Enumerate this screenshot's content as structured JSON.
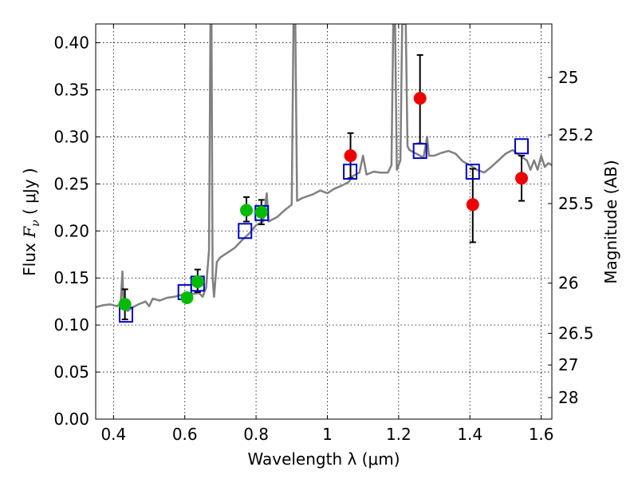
{
  "chart_data": {
    "type": "scatter",
    "title": "",
    "xlabel": "Wavelength  λ (μm)",
    "ylabel": "Flux  F_ν  ( μJy )",
    "y2label": "Magnitude (AB)",
    "xlim": [
      0.35,
      1.63
    ],
    "ylim": [
      0.0,
      0.42
    ],
    "grid": true,
    "xticks": [
      {
        "value": 0.4,
        "label": "0.4"
      },
      {
        "value": 0.6,
        "label": "0.6"
      },
      {
        "value": 0.8,
        "label": "0.8"
      },
      {
        "value": 1.0,
        "label": "1"
      },
      {
        "value": 1.2,
        "label": "1.2"
      },
      {
        "value": 1.4,
        "label": "1.4"
      },
      {
        "value": 1.6,
        "label": "1.6"
      }
    ],
    "yticks": [
      {
        "value": 0.0,
        "label": "0.00"
      },
      {
        "value": 0.05,
        "label": "0.05"
      },
      {
        "value": 0.1,
        "label": "0.10"
      },
      {
        "value": 0.15,
        "label": "0.15"
      },
      {
        "value": 0.2,
        "label": "0.20"
      },
      {
        "value": 0.25,
        "label": "0.25"
      },
      {
        "value": 0.3,
        "label": "0.30"
      },
      {
        "value": 0.35,
        "label": "0.35"
      },
      {
        "value": 0.4,
        "label": "0.40"
      }
    ],
    "y2ticks": [
      {
        "value": 25,
        "label": "25"
      },
      {
        "value": 25.2,
        "label": "25.2"
      },
      {
        "value": 25.5,
        "label": "25.5"
      },
      {
        "value": 26,
        "label": "26"
      },
      {
        "value": 26.5,
        "label": "26.5"
      },
      {
        "value": 27,
        "label": "27"
      },
      {
        "value": 28,
        "label": "28"
      }
    ],
    "series": [
      {
        "name": "model spectrum",
        "kind": "line",
        "color": "#808080",
        "points": [
          [
            0.35,
            0.119
          ],
          [
            0.37,
            0.121
          ],
          [
            0.39,
            0.122
          ],
          [
            0.41,
            0.12
          ],
          [
            0.42,
            0.123
          ],
          [
            0.425,
            0.157
          ],
          [
            0.428,
            0.12
          ],
          [
            0.43,
            0.118
          ],
          [
            0.44,
            0.115
          ],
          [
            0.45,
            0.118
          ],
          [
            0.47,
            0.122
          ],
          [
            0.49,
            0.125
          ],
          [
            0.5,
            0.12
          ],
          [
            0.51,
            0.128
          ],
          [
            0.53,
            0.126
          ],
          [
            0.55,
            0.129
          ],
          [
            0.57,
            0.13
          ],
          [
            0.59,
            0.132
          ],
          [
            0.6,
            0.131
          ],
          [
            0.62,
            0.133
          ],
          [
            0.64,
            0.134
          ],
          [
            0.65,
            0.13
          ],
          [
            0.66,
            0.14
          ],
          [
            0.668,
            0.18
          ],
          [
            0.672,
            0.42
          ],
          [
            0.675,
            0.42
          ],
          [
            0.678,
            0.15
          ],
          [
            0.682,
            0.13
          ],
          [
            0.69,
            0.167
          ],
          [
            0.7,
            0.172
          ],
          [
            0.72,
            0.177
          ],
          [
            0.74,
            0.182
          ],
          [
            0.76,
            0.19
          ],
          [
            0.78,
            0.197
          ],
          [
            0.8,
            0.206
          ],
          [
            0.82,
            0.21
          ],
          [
            0.83,
            0.24
          ],
          [
            0.835,
            0.21
          ],
          [
            0.86,
            0.215
          ],
          [
            0.88,
            0.222
          ],
          [
            0.9,
            0.228
          ],
          [
            0.905,
            0.42
          ],
          [
            0.91,
            0.42
          ],
          [
            0.915,
            0.232
          ],
          [
            0.93,
            0.235
          ],
          [
            0.96,
            0.239
          ],
          [
            0.98,
            0.243
          ],
          [
            1.0,
            0.24
          ],
          [
            1.02,
            0.245
          ],
          [
            1.04,
            0.248
          ],
          [
            1.06,
            0.252
          ],
          [
            1.07,
            0.258
          ],
          [
            1.09,
            0.262
          ],
          [
            1.1,
            0.28
          ],
          [
            1.11,
            0.26
          ],
          [
            1.13,
            0.263
          ],
          [
            1.15,
            0.262
          ],
          [
            1.17,
            0.262
          ],
          [
            1.18,
            0.27
          ],
          [
            1.185,
            0.42
          ],
          [
            1.19,
            0.42
          ],
          [
            1.195,
            0.265
          ],
          [
            1.205,
            0.275
          ],
          [
            1.21,
            0.42
          ],
          [
            1.22,
            0.42
          ],
          [
            1.225,
            0.29
          ],
          [
            1.23,
            0.286
          ],
          [
            1.25,
            0.282
          ],
          [
            1.27,
            0.278
          ],
          [
            1.28,
            0.3
          ],
          [
            1.285,
            0.28
          ],
          [
            1.3,
            0.28
          ],
          [
            1.32,
            0.283
          ],
          [
            1.34,
            0.285
          ],
          [
            1.36,
            0.282
          ],
          [
            1.37,
            0.278
          ],
          [
            1.38,
            0.274
          ],
          [
            1.4,
            0.27
          ],
          [
            1.42,
            0.265
          ],
          [
            1.44,
            0.262
          ],
          [
            1.46,
            0.268
          ],
          [
            1.48,
            0.275
          ],
          [
            1.5,
            0.282
          ],
          [
            1.52,
            0.286
          ],
          [
            1.54,
            0.28
          ],
          [
            1.56,
            0.275
          ],
          [
            1.57,
            0.265
          ],
          [
            1.58,
            0.275
          ],
          [
            1.59,
            0.265
          ],
          [
            1.6,
            0.28
          ],
          [
            1.61,
            0.268
          ],
          [
            1.62,
            0.272
          ],
          [
            1.63,
            0.27
          ]
        ]
      },
      {
        "name": "green photometry",
        "kind": "points",
        "marker": "circle",
        "color": "#00bb00",
        "points": [
          {
            "x": 0.432,
            "y": 0.122,
            "err": [
              0.106,
              0.138
            ]
          },
          {
            "x": 0.606,
            "y": 0.129,
            "err": null
          },
          {
            "x": 0.636,
            "y": 0.146,
            "err": [
              0.135,
              0.159
            ]
          },
          {
            "x": 0.773,
            "y": 0.222,
            "err": [
              0.21,
              0.236
            ]
          },
          {
            "x": 0.815,
            "y": 0.22,
            "err": [
              0.207,
              0.233
            ]
          }
        ]
      },
      {
        "name": "red photometry",
        "kind": "points",
        "marker": "circle",
        "color": "#ee0000",
        "points": [
          {
            "x": 1.065,
            "y": 0.28,
            "err": [
              0.256,
              0.304
            ]
          },
          {
            "x": 1.26,
            "y": 0.341,
            "err": [
              0.293,
              0.387
            ]
          },
          {
            "x": 1.408,
            "y": 0.228,
            "err": [
              0.188,
              0.266
            ]
          },
          {
            "x": 1.545,
            "y": 0.256,
            "err": [
              0.232,
              0.28
            ]
          }
        ]
      },
      {
        "name": "model magnitudes",
        "kind": "points",
        "marker": "square",
        "color": "#0000cc",
        "points": [
          {
            "x": 0.435,
            "y": 0.111
          },
          {
            "x": 0.6,
            "y": 0.135
          },
          {
            "x": 0.636,
            "y": 0.144
          },
          {
            "x": 0.769,
            "y": 0.2
          },
          {
            "x": 0.816,
            "y": 0.219
          },
          {
            "x": 1.064,
            "y": 0.263
          },
          {
            "x": 1.26,
            "y": 0.285
          },
          {
            "x": 1.408,
            "y": 0.263
          },
          {
            "x": 1.545,
            "y": 0.29
          }
        ]
      }
    ]
  }
}
